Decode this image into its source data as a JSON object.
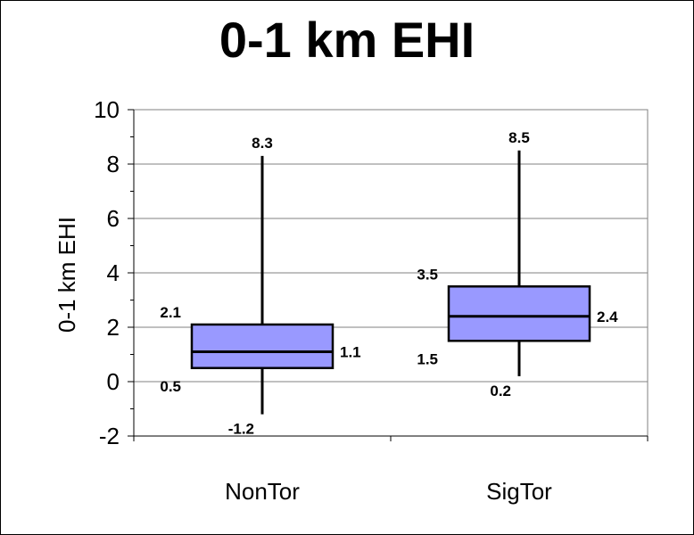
{
  "chart_data": {
    "type": "box",
    "title": "0-1 km EHI",
    "xlabel": "",
    "ylabel": "0-1 km EHI",
    "ylim": [
      -2,
      10
    ],
    "yticks": [
      -2,
      0,
      2,
      4,
      6,
      8,
      10
    ],
    "grid": true,
    "categories": [
      "NonTor",
      "SigTor"
    ],
    "boxes": [
      {
        "category": "NonTor",
        "min": -1.2,
        "q1": 0.5,
        "median": 1.1,
        "q3": 2.1,
        "max": 8.3,
        "labels": {
          "min": "-1.2",
          "q1": "0.5",
          "median": "1.1",
          "q3": "2.1",
          "max": "8.3"
        }
      },
      {
        "category": "SigTor",
        "min": 0.2,
        "q1": 1.5,
        "median": 2.4,
        "q3": 3.5,
        "max": 8.5,
        "labels": {
          "min": "0.2",
          "q1": "1.5",
          "median": "2.4",
          "q3": "3.5",
          "max": "8.5"
        }
      }
    ],
    "colors": {
      "box_fill": "#9999ff",
      "line": "#000000",
      "grid": "#808080"
    }
  }
}
